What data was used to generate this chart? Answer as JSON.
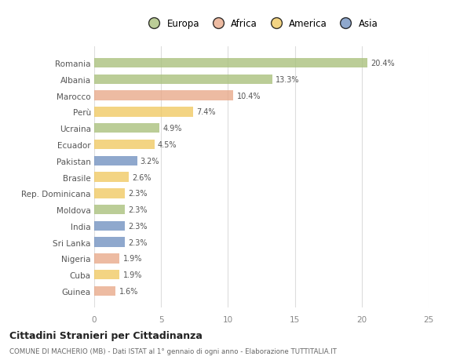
{
  "categories": [
    "Romania",
    "Albania",
    "Marocco",
    "Perù",
    "Ucraina",
    "Ecuador",
    "Pakistan",
    "Brasile",
    "Rep. Dominicana",
    "Moldova",
    "India",
    "Sri Lanka",
    "Nigeria",
    "Cuba",
    "Guinea"
  ],
  "values": [
    20.4,
    13.3,
    10.4,
    7.4,
    4.9,
    4.5,
    3.2,
    2.6,
    2.3,
    2.3,
    2.3,
    2.3,
    1.9,
    1.9,
    1.6
  ],
  "colors": [
    "#a8c07a",
    "#a8c07a",
    "#e8a888",
    "#f0c860",
    "#a8c07a",
    "#f0c860",
    "#7090c0",
    "#f0c860",
    "#f0c860",
    "#a8c07a",
    "#7090c0",
    "#7090c0",
    "#e8a888",
    "#f0c860",
    "#e8a888"
  ],
  "legend_labels": [
    "Europa",
    "Africa",
    "America",
    "Asia"
  ],
  "legend_colors": [
    "#a8c07a",
    "#e8a888",
    "#f0c860",
    "#7090c0"
  ],
  "xlim": [
    0,
    25
  ],
  "xticks": [
    0,
    5,
    10,
    15,
    20,
    25
  ],
  "title_main": "Cittadini Stranieri per Cittadinanza",
  "title_sub": "COMUNE DI MACHERIO (MB) - Dati ISTAT al 1° gennaio di ogni anno - Elaborazione TUTTITALIA.IT",
  "background_color": "#ffffff",
  "bar_height": 0.6
}
